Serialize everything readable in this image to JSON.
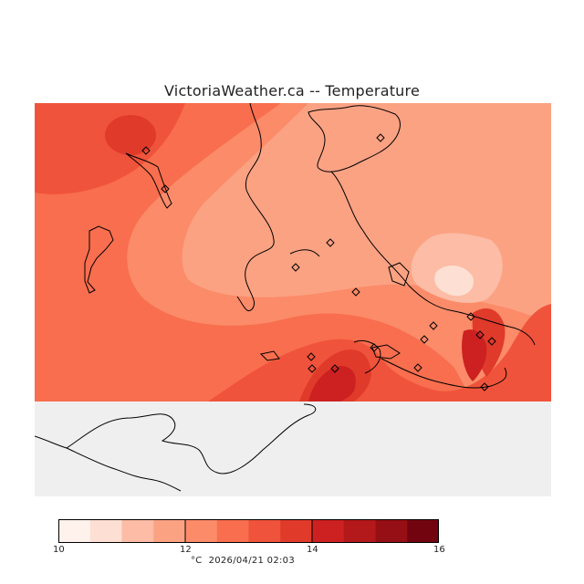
{
  "title": "VictoriaWeather.ca -- Temperature",
  "map": {
    "variable": "Temperature",
    "units": "°C",
    "land_color": "#efefef",
    "coastline_color": "#000000",
    "station_marker": "diamond-icon"
  },
  "colorbar": {
    "min": 10,
    "max": 16,
    "step": 0.5,
    "tick_labels": [
      "10",
      "12",
      "14",
      "16"
    ],
    "colors": [
      "#fff2ec",
      "#fde0d3",
      "#fcbca5",
      "#fba283",
      "#fb8b69",
      "#f86e4e",
      "#f0533b",
      "#e03a2b",
      "#cc2120",
      "#b3181b",
      "#950f15",
      "#720410"
    ]
  },
  "footer": {
    "units": "°C",
    "timestamp": "2026/04/21 02:03"
  }
}
